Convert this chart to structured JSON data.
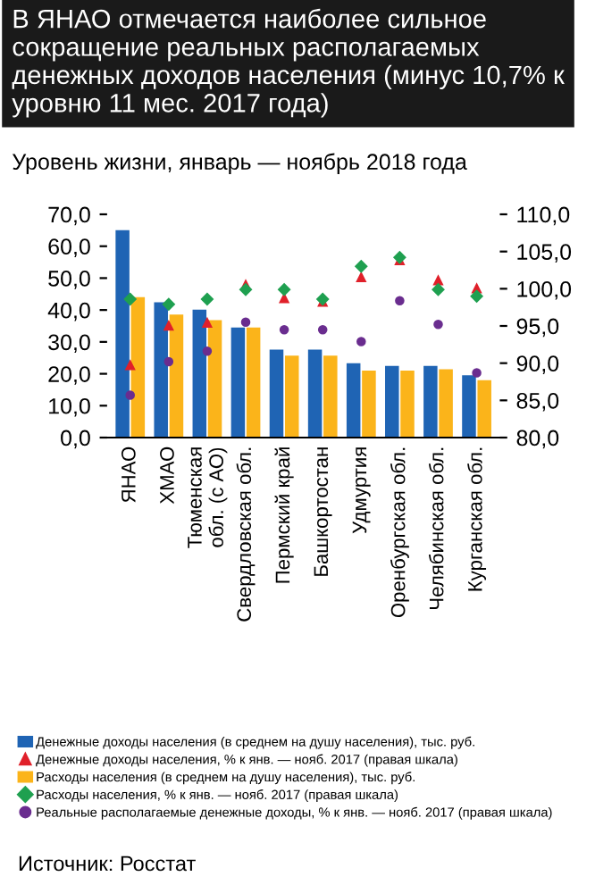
{
  "chart_data": {
    "type": "bar",
    "title": "В ЯНАО отмечается наиболее сильное сокращение реальных располагаемых денежных доходов населения (минус 10,7% к уровню 11 мес. 2017 года)",
    "subtitle": "Уровень жизни, январь — ноябрь 2018 года",
    "categories": [
      "ЯНАО",
      "ХМАО",
      "Тюменская\nобл. (с АО)",
      "Свердловская обл.",
      "Пермский край",
      "Башкортостан",
      "Удмуртия",
      "Оренбургская обл.",
      "Челябинская обл.",
      "Курганская обл."
    ],
    "series": [
      {
        "name": "Денежные доходы населения (в среднем на душу населения), тыс. руб.",
        "color": "#1f64b4",
        "values": [
          65,
          42.4,
          40.1,
          34.5,
          27.6,
          27.6,
          23.3,
          22.5,
          22.5,
          19.5
        ]
      },
      {
        "name": "Денежные доходы населения, % к янв. — нояб. 2017 (правая шкала)",
        "type": "scatter",
        "axis": "y2",
        "marker": "triangle",
        "color": "#e0202a",
        "values": [
          89.7,
          95.0,
          95.4,
          100.5,
          98.7,
          98.2,
          101.5,
          103.8,
          101.1,
          100.0
        ]
      },
      {
        "name": "Расходы населения (в среднем на душу населения), тыс. руб.",
        "color": "#fbb41a",
        "values": [
          44,
          38.6,
          36.8,
          34.5,
          25.7,
          25.7,
          21,
          21,
          21.4,
          18
        ]
      },
      {
        "name": "Расходы населения, % к янв. — нояб. 2017 (правая шкала)",
        "type": "scatter",
        "axis": "y2",
        "marker": "diamond",
        "color": "#1fa050",
        "values": [
          98.6,
          97.9,
          98.6,
          99.9,
          99.9,
          98.6,
          103.0,
          104.2,
          99.9,
          99.0
        ]
      },
      {
        "name": "Реальные располагаемые денежные доходы, % к янв. — нояб. 2017 (правая шкала)",
        "type": "scatter",
        "axis": "y2",
        "marker": "circle",
        "color": "#6a2d8f",
        "values": [
          85.7,
          90.2,
          91.6,
          95.5,
          94.5,
          94.5,
          92.9,
          98.4,
          95.2,
          88.7
        ]
      }
    ],
    "ylim": [
      0,
      70
    ],
    "yticks": [
      {
        "value": 0,
        "label": "0,0"
      },
      {
        "value": 10,
        "label": "10,0"
      },
      {
        "value": 20,
        "label": "20,0"
      },
      {
        "value": 30,
        "label": "30,0"
      },
      {
        "value": 40,
        "label": "40,0"
      },
      {
        "value": 50,
        "label": "50,0"
      },
      {
        "value": 60,
        "label": "60,0"
      },
      {
        "value": 70,
        "label": "70,0"
      }
    ],
    "y2lim": [
      80,
      110
    ],
    "y2ticks": [
      {
        "value": 80,
        "label": "80,0"
      },
      {
        "value": 85,
        "label": "85,0"
      },
      {
        "value": 90,
        "label": "90,0"
      },
      {
        "value": 95,
        "label": "95,0"
      },
      {
        "value": 100,
        "label": "100,0"
      },
      {
        "value": 105,
        "label": "105,0"
      },
      {
        "value": 110,
        "label": "110,0"
      }
    ],
    "grid": false,
    "legend": "bottom",
    "annotations": [
      "Источник: Росстат"
    ]
  }
}
